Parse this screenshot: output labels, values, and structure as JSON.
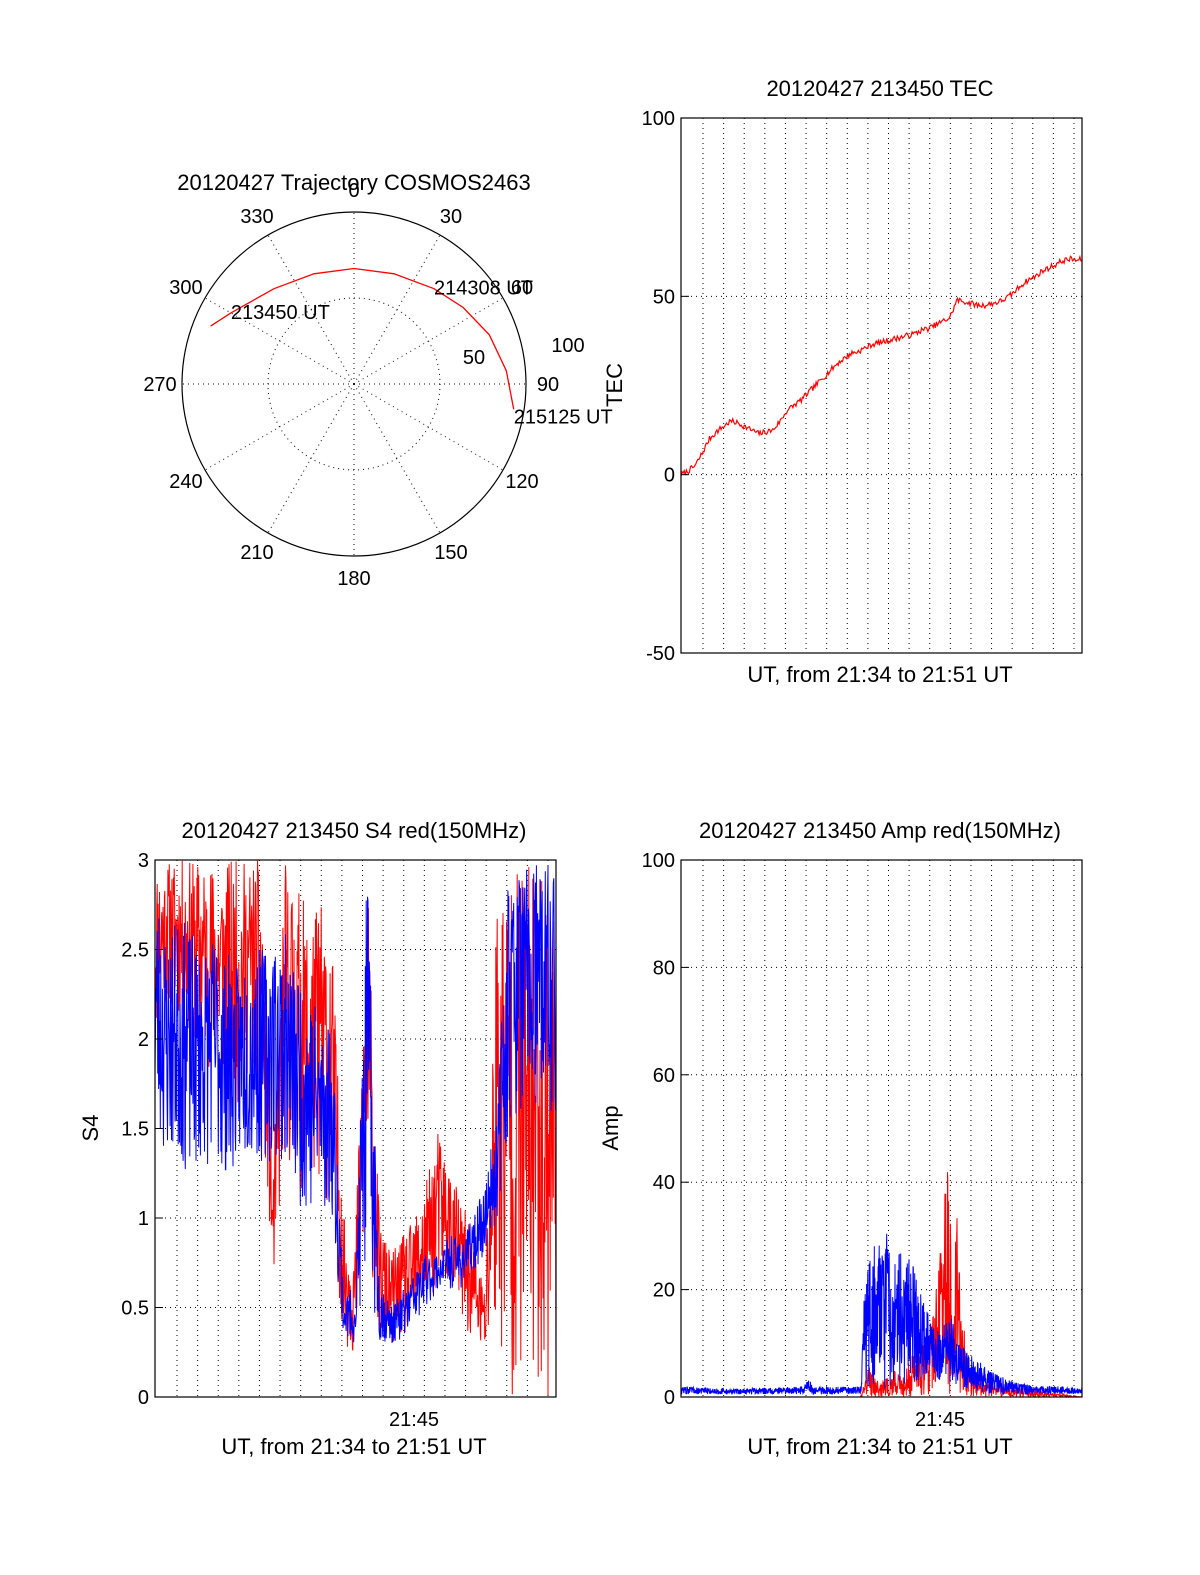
{
  "figure": {
    "background": "#ffffff",
    "red_color": "#ff0000",
    "blue_color": "#0000ff"
  },
  "chart_data": [
    {
      "id": "polar",
      "type": "scatter",
      "subtype": "polar-trajectory",
      "title": "20120427 Trajectory COSMOS2463",
      "azimuth_labels": [
        "0",
        "30",
        "60",
        "90",
        "120",
        "150",
        "180",
        "210",
        "240",
        "270",
        "300",
        "330"
      ],
      "elevation_ring_labels": [
        "50",
        "100"
      ],
      "series": [
        {
          "color": "#ff0000",
          "points_az_el": [
            [
              292,
              3
            ],
            [
              300,
              10
            ],
            [
              320,
              20
            ],
            [
              340,
              24
            ],
            [
              0,
              25
            ],
            [
              20,
              24
            ],
            [
              40,
              20
            ],
            [
              55,
              15
            ],
            [
              70,
              9
            ],
            [
              85,
              4
            ],
            [
              99,
              -1
            ]
          ]
        }
      ],
      "annotations": [
        {
          "text": "213450 UT",
          "az": 300,
          "el": 10
        },
        {
          "text": "214308 UT",
          "az": 40,
          "el": 20
        },
        {
          "text": "215125 UT",
          "az": 99,
          "el": -1
        }
      ]
    },
    {
      "id": "tec",
      "type": "line",
      "title": "20120427 213450 TEC",
      "xlabel": "UT, from 21:34 to 21:51 UT",
      "ylabel": "TEC",
      "xlim": [
        0,
        17
      ],
      "ylim": [
        -50,
        100
      ],
      "yticks": [
        "-50",
        "0",
        "50",
        "100"
      ],
      "grid": true,
      "series": [
        {
          "color": "#ff0000",
          "x": [
            0.0,
            0.3,
            0.6,
            0.9,
            1.2,
            1.5,
            1.8,
            2.1,
            2.4,
            2.7,
            3.0,
            3.3,
            3.6,
            3.9,
            4.2,
            4.5,
            4.8,
            5.1,
            5.4,
            5.7,
            6.0,
            6.3,
            6.6,
            6.9,
            7.2,
            7.5,
            7.8,
            8.1,
            8.4,
            8.7,
            9.0,
            9.3,
            9.6,
            9.9,
            10.2,
            10.5,
            10.8,
            11.1,
            11.4,
            11.7,
            12.0,
            12.3,
            12.6,
            12.9,
            13.2,
            13.5,
            13.8,
            14.1,
            14.4,
            14.7,
            15.0,
            15.3,
            15.6,
            15.9,
            16.2,
            16.5,
            16.8,
            17.0
          ],
          "values": [
            0.0,
            1.0,
            2.5,
            6.0,
            10.0,
            12.0,
            13.5,
            15.0,
            14.5,
            13.5,
            12.5,
            11.5,
            12.0,
            12.5,
            15.0,
            18.0,
            19.5,
            21.0,
            23.0,
            25.0,
            27.0,
            29.0,
            31.0,
            32.5,
            34.0,
            34.5,
            35.5,
            36.5,
            37.0,
            37.5,
            38.0,
            38.5,
            39.0,
            39.5,
            40.5,
            41.0,
            42.0,
            43.0,
            44.0,
            49.0,
            48.5,
            48.0,
            47.5,
            47.5,
            48.0,
            48.5,
            49.5,
            51.0,
            53.0,
            54.5,
            55.5,
            57.0,
            58.0,
            59.0,
            60.0,
            60.5,
            60.0,
            60.5
          ]
        }
      ]
    },
    {
      "id": "s4",
      "type": "line",
      "title": "20120427 213450 S4 red(150MHz)",
      "xlabel": "UT, from 21:34 to 21:51 UT",
      "ylabel": "S4",
      "xlim": [
        0,
        17
      ],
      "ylim": [
        0,
        3
      ],
      "yticks": [
        "0",
        "0.5",
        "1",
        "1.5",
        "2",
        "2.5",
        "3"
      ],
      "xtick_label": "21:45",
      "xtick_value": 11,
      "grid": true,
      "series": [
        {
          "color": "#ff0000",
          "x": [
            0.0,
            0.5,
            1.0,
            1.5,
            2.0,
            2.5,
            3.0,
            3.5,
            4.0,
            4.5,
            5.0,
            5.5,
            6.0,
            6.5,
            7.0,
            7.5,
            8.0,
            8.5,
            9.0,
            9.5,
            10.0,
            10.5,
            11.0,
            11.5,
            12.0,
            12.5,
            13.0,
            13.5,
            14.0,
            14.5,
            15.0,
            15.5,
            16.0,
            16.5,
            17.0
          ],
          "low": [
            2.0,
            2.2,
            2.1,
            2.0,
            1.9,
            1.8,
            1.7,
            1.6,
            1.8,
            1.7,
            0.6,
            1.3,
            1.2,
            1.1,
            1.2,
            1.0,
            0.3,
            0.2,
            0.9,
            0.3,
            0.3,
            0.3,
            0.4,
            0.5,
            0.6,
            0.6,
            0.4,
            0.3,
            0.2,
            0.2,
            0.0,
            0.0,
            0.0,
            0.0,
            0.0
          ],
          "high": [
            3.0,
            3.0,
            3.0,
            3.0,
            3.0,
            3.0,
            3.0,
            3.0,
            3.0,
            3.0,
            1.2,
            3.0,
            2.9,
            2.7,
            2.8,
            2.6,
            1.0,
            0.9,
            3.0,
            1.0,
            0.8,
            0.9,
            1.0,
            1.2,
            1.5,
            1.3,
            1.1,
            0.9,
            0.6,
            3.0,
            3.0,
            3.0,
            3.0,
            3.0,
            3.0
          ]
        },
        {
          "color": "#0000ff",
          "x": [
            0.0,
            0.5,
            1.0,
            1.5,
            2.0,
            2.5,
            3.0,
            3.5,
            4.0,
            4.5,
            5.0,
            5.5,
            6.0,
            6.5,
            7.0,
            7.5,
            8.0,
            8.5,
            9.0,
            9.5,
            10.0,
            10.5,
            11.0,
            11.5,
            12.0,
            12.5,
            13.0,
            13.5,
            14.0,
            14.5,
            15.0,
            15.5,
            16.0,
            16.5,
            17.0
          ],
          "low": [
            1.4,
            1.3,
            1.3,
            1.2,
            1.3,
            1.3,
            1.2,
            1.3,
            1.3,
            1.3,
            1.3,
            1.3,
            1.1,
            1.0,
            1.0,
            1.0,
            0.3,
            0.3,
            0.7,
            0.3,
            0.3,
            0.3,
            0.4,
            0.5,
            0.6,
            0.6,
            0.6,
            0.7,
            0.8,
            1.0,
            1.5,
            1.6,
            1.5,
            1.6,
            1.5
          ],
          "high": [
            2.9,
            2.6,
            2.7,
            2.6,
            2.5,
            2.6,
            2.5,
            2.4,
            2.6,
            2.5,
            2.6,
            2.6,
            2.4,
            2.3,
            2.2,
            2.1,
            0.6,
            0.6,
            3.0,
            0.7,
            0.5,
            0.6,
            0.7,
            0.8,
            0.8,
            0.9,
            0.9,
            1.0,
            1.2,
            1.6,
            3.0,
            3.0,
            3.0,
            3.0,
            3.0
          ]
        }
      ]
    },
    {
      "id": "amp",
      "type": "line",
      "title": "20120427 213450 Amp red(150MHz)",
      "xlabel": "UT, from 21:34 to 21:51 UT",
      "ylabel": "Amp",
      "xlim": [
        0,
        17
      ],
      "ylim": [
        0,
        100
      ],
      "yticks": [
        "0",
        "20",
        "40",
        "60",
        "80",
        "100"
      ],
      "xtick_label": "21:45",
      "xtick_value": 11,
      "grid": true,
      "series": [
        {
          "color": "#ff0000",
          "x": [
            0.0,
            7.6,
            7.8,
            8.0,
            8.3,
            8.6,
            9.0,
            9.3,
            9.6,
            10.0,
            10.3,
            10.6,
            10.9,
            11.1,
            11.3,
            11.5,
            11.7,
            11.9,
            12.2,
            12.5,
            17.0
          ],
          "low": [
            0,
            0,
            0,
            0,
            0,
            0,
            0,
            0,
            0,
            0,
            0,
            0,
            0,
            0,
            0,
            0,
            0,
            0,
            0,
            0,
            0
          ],
          "high": [
            0,
            0,
            3,
            6,
            4,
            3,
            5,
            4,
            6,
            10,
            12,
            15,
            25,
            30,
            52,
            20,
            35,
            15,
            8,
            3,
            0
          ]
        },
        {
          "color": "#0000ff",
          "x": [
            0.0,
            2.0,
            4.0,
            5.2,
            5.4,
            5.6,
            7.6,
            7.8,
            8.2,
            8.6,
            9.0,
            9.4,
            9.8,
            10.2,
            10.6,
            11.0,
            11.4,
            11.8,
            12.2,
            12.6,
            13.0,
            13.5,
            14.0,
            15.0,
            16.0,
            17.0
          ],
          "low": [
            0.5,
            0.5,
            0.5,
            0.5,
            0.5,
            0.5,
            0.5,
            1.5,
            2.0,
            1.5,
            2.0,
            2.5,
            2.0,
            3.0,
            4.0,
            3.0,
            2.5,
            2.0,
            1.5,
            1.0,
            0.5,
            0.5,
            0.5,
            0.5,
            0.5,
            0.5
          ],
          "high": [
            2.0,
            1.5,
            1.8,
            2.0,
            4.0,
            1.8,
            2.0,
            22.0,
            30.0,
            33.0,
            25.0,
            28.0,
            26.0,
            20.0,
            14.0,
            12.0,
            16.0,
            10.0,
            8.0,
            7.0,
            5.0,
            4.0,
            3.0,
            2.0,
            2.0,
            1.5
          ]
        }
      ]
    }
  ]
}
